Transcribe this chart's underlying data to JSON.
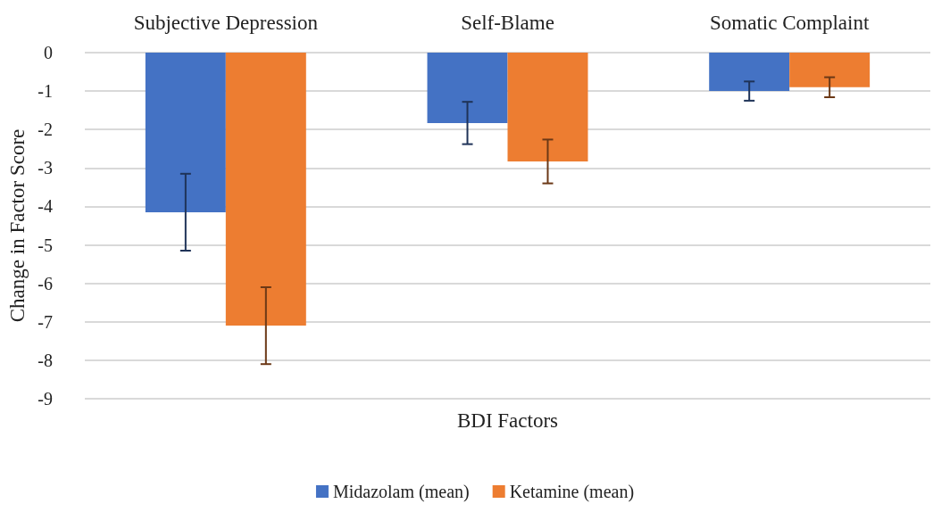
{
  "chart_data": {
    "type": "bar",
    "xlabel": "BDI Factors",
    "ylabel": "Change in Factor Score",
    "categories": [
      "Subjective Depression",
      "Self-Blame",
      "Somatic Complaint"
    ],
    "series": [
      {
        "name": "Midazolam (mean)",
        "color": "#4472c4",
        "values": [
          -4.15,
          -1.83,
          -1.0
        ],
        "errors": [
          1.0,
          0.55,
          0.25
        ]
      },
      {
        "name": "Ketamine (mean)",
        "color": "#ed7d31",
        "values": [
          -7.1,
          -2.83,
          -0.9
        ],
        "errors": [
          1.0,
          0.57,
          0.26
        ]
      }
    ],
    "ylim": [
      -9,
      0
    ],
    "yticks": [
      -9,
      -8,
      -7,
      -6,
      -5,
      -4,
      -3,
      -2,
      -1,
      0
    ],
    "grid": "y",
    "legend": "bottom"
  }
}
